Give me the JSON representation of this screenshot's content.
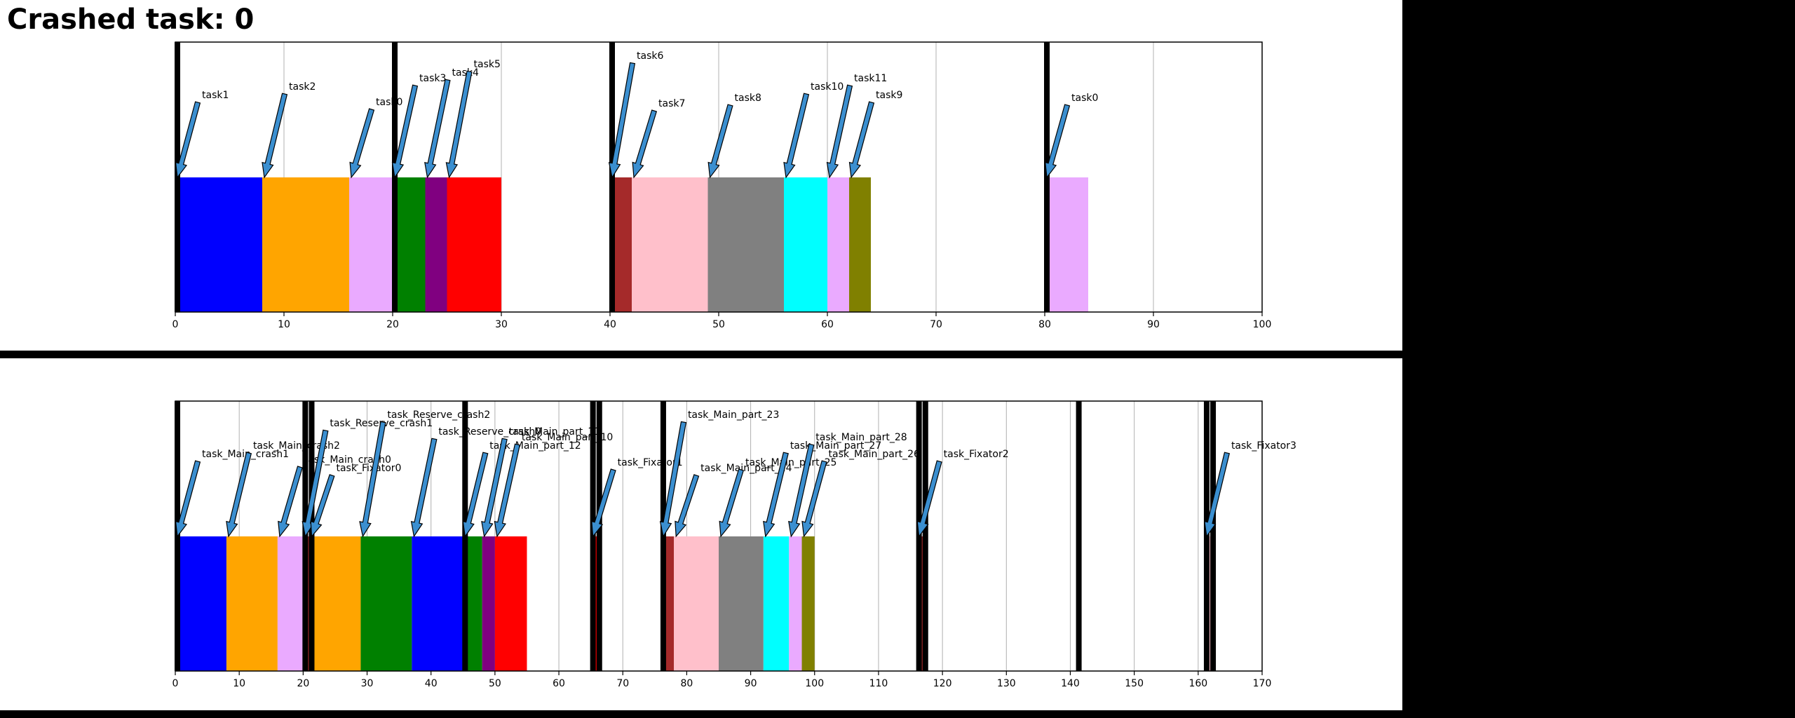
{
  "title": "Crashed task: 0",
  "chart_data": [
    {
      "type": "gantt",
      "xlim": [
        0,
        100
      ],
      "xticks": [
        0,
        10,
        20,
        30,
        40,
        50,
        60,
        70,
        80,
        90,
        100
      ],
      "grid": "vertical",
      "markers": [
        0,
        20,
        40,
        80
      ],
      "bars": [
        {
          "start": 0,
          "end": 8,
          "color": "#0000ff"
        },
        {
          "start": 8,
          "end": 16,
          "color": "#ffa500"
        },
        {
          "start": 16,
          "end": 20,
          "color": "#eaaaff"
        },
        {
          "start": 20,
          "end": 23,
          "color": "#008000"
        },
        {
          "start": 23,
          "end": 25,
          "color": "#800080"
        },
        {
          "start": 25,
          "end": 30,
          "color": "#ff0000"
        },
        {
          "start": 40,
          "end": 42,
          "color": "#a52a2a"
        },
        {
          "start": 42,
          "end": 49,
          "color": "#ffc0cb"
        },
        {
          "start": 49,
          "end": 56,
          "color": "#808080"
        },
        {
          "start": 56,
          "end": 60,
          "color": "#00ffff"
        },
        {
          "start": 60,
          "end": 62,
          "color": "#eaaaff"
        },
        {
          "start": 62,
          "end": 64,
          "color": "#808000"
        },
        {
          "start": 80,
          "end": 84,
          "color": "#eaaaff"
        }
      ],
      "annotations": [
        {
          "x": 0,
          "label": "task1",
          "level": 0.88
        },
        {
          "x": 8,
          "label": "task2",
          "level": 0.94
        },
        {
          "x": 16,
          "label": "task0",
          "level": 0.83
        },
        {
          "x": 20,
          "label": "task3",
          "level": 1.0
        },
        {
          "x": 23,
          "label": "task4",
          "level": 1.04
        },
        {
          "x": 25,
          "label": "task5",
          "level": 1.1
        },
        {
          "x": 40,
          "label": "task6",
          "level": 1.16
        },
        {
          "x": 42,
          "label": "task7",
          "level": 0.82
        },
        {
          "x": 49,
          "label": "task8",
          "level": 0.86
        },
        {
          "x": 56,
          "label": "task10",
          "level": 0.94
        },
        {
          "x": 60,
          "label": "task11",
          "level": 1.0
        },
        {
          "x": 62,
          "label": "task9",
          "level": 0.88
        },
        {
          "x": 80,
          "label": "task0",
          "level": 0.86
        }
      ]
    },
    {
      "type": "gantt",
      "xlim": [
        0,
        170
      ],
      "xticks": [
        0,
        10,
        20,
        30,
        40,
        50,
        60,
        70,
        80,
        90,
        100,
        110,
        120,
        130,
        140,
        150,
        160,
        170
      ],
      "grid": "vertical",
      "markers": [
        0,
        20,
        21,
        45,
        65,
        66,
        76,
        116,
        117,
        141,
        161,
        162
      ],
      "bars": [
        {
          "start": 0,
          "end": 8,
          "color": "#0000ff"
        },
        {
          "start": 8,
          "end": 16,
          "color": "#ffa500"
        },
        {
          "start": 16,
          "end": 20,
          "color": "#eaaaff"
        },
        {
          "start": 20,
          "end": 21,
          "color": "#a52a2a"
        },
        {
          "start": 21,
          "end": 29,
          "color": "#ffa500"
        },
        {
          "start": 29,
          "end": 37,
          "color": "#008000"
        },
        {
          "start": 37,
          "end": 45,
          "color": "#0000ff"
        },
        {
          "start": 45,
          "end": 48,
          "color": "#008000"
        },
        {
          "start": 48,
          "end": 50,
          "color": "#800080"
        },
        {
          "start": 50,
          "end": 55,
          "color": "#ff0000"
        },
        {
          "start": 65,
          "end": 66,
          "color": "#ff0000"
        },
        {
          "start": 76,
          "end": 78,
          "color": "#a52a2a"
        },
        {
          "start": 78,
          "end": 85,
          "color": "#ffc0cb"
        },
        {
          "start": 85,
          "end": 92,
          "color": "#808080"
        },
        {
          "start": 92,
          "end": 96,
          "color": "#00ffff"
        },
        {
          "start": 96,
          "end": 98,
          "color": "#eaaaff"
        },
        {
          "start": 98,
          "end": 100,
          "color": "#808000"
        },
        {
          "start": 116,
          "end": 117,
          "color": "#a52a2a"
        },
        {
          "start": 161,
          "end": 162,
          "color": "#ffc0cb"
        }
      ],
      "annotations": [
        {
          "x": 0,
          "label": "task_Main_crash1",
          "level": 0.88
        },
        {
          "x": 8,
          "label": "task_Main_crash2",
          "level": 0.94
        },
        {
          "x": 16,
          "label": "task_Main_crash0",
          "level": 0.84
        },
        {
          "x": 20,
          "label": "task_Reserve_crash1",
          "level": 1.1
        },
        {
          "x": 21,
          "label": "task_Fixator0",
          "level": 0.78
        },
        {
          "x": 29,
          "label": "task_Reserve_crash2",
          "level": 1.16
        },
        {
          "x": 37,
          "label": "task_Reserve_crash0",
          "level": 1.04
        },
        {
          "x": 45,
          "label": "task_Main_part_12",
          "level": 0.94
        },
        {
          "x": 48,
          "label": "task_Main_part_11",
          "level": 1.04
        },
        {
          "x": 50,
          "label": "task_Main_part_10",
          "level": 1.0
        },
        {
          "x": 65,
          "label": "task_Fixator1",
          "level": 0.82
        },
        {
          "x": 76,
          "label": "task_Main_part_23",
          "level": 1.16
        },
        {
          "x": 78,
          "label": "task_Main_part_24",
          "level": 0.78
        },
        {
          "x": 85,
          "label": "task_Main_part_25",
          "level": 0.82
        },
        {
          "x": 92,
          "label": "task_Main_part_27",
          "level": 0.94
        },
        {
          "x": 96,
          "label": "task_Main_part_28",
          "level": 1.0
        },
        {
          "x": 98,
          "label": "task_Main_part_26",
          "level": 0.88
        },
        {
          "x": 116,
          "label": "task_Fixator2",
          "level": 0.88
        },
        {
          "x": 161,
          "label": "task_Fixator3",
          "level": 0.94
        }
      ]
    }
  ]
}
